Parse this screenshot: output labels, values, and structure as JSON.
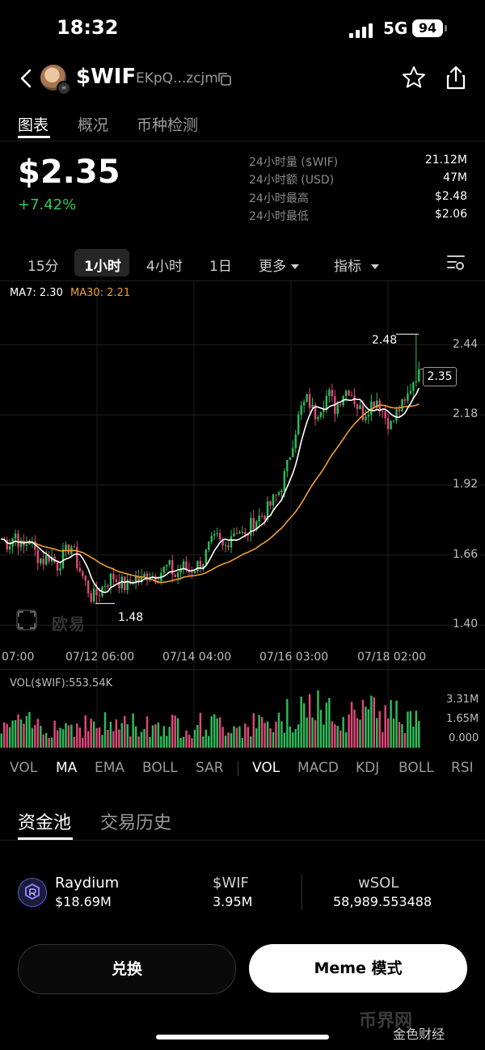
{
  "status": {
    "time": "18:32",
    "network": "5G",
    "battery": "94"
  },
  "header": {
    "ticker": "$WIF",
    "address": "EKpQ...zcjm"
  },
  "tabs": [
    "图表",
    "概况",
    "币种检测"
  ],
  "price": {
    "value": "$2.35",
    "change": "+7.42%",
    "stats": [
      {
        "label": "24小时量 ($WIF)",
        "value": "21.12M"
      },
      {
        "label": "24小时额 (USD)",
        "value": "47M"
      },
      {
        "label": "24小时最高",
        "value": "$2.48"
      },
      {
        "label": "24小时最低",
        "value": "$2.06"
      }
    ]
  },
  "intervals": {
    "items": [
      "15分",
      "1小时",
      "4小时",
      "1日"
    ],
    "active": "1小时",
    "more": "更多",
    "indicators": "指标"
  },
  "chart_data": {
    "type": "candlestick",
    "ma_legend": {
      "ma7": "MA7: 2.30",
      "ma30": "MA30: 2.21"
    },
    "colors": {
      "up": "#2ebd5b",
      "down": "#e0497a",
      "ma7": "#ffffff",
      "ma30": "#f0a030"
    },
    "y_ticks": [
      "2.44",
      "2.18",
      "1.92",
      "1.66",
      "1.40"
    ],
    "y_tick_values": [
      2.44,
      2.18,
      1.92,
      1.66,
      1.4
    ],
    "ylim": [
      1.35,
      2.58
    ],
    "x_ticks": [
      "07:00",
      "07/12 06:00",
      "07/14 04:00",
      "07/16 03:00",
      "07/18 02:00"
    ],
    "last_price": "2.35",
    "high_label": "2.48",
    "low_label": "1.48",
    "close_path": [
      1.72,
      1.7,
      1.74,
      1.68,
      1.72,
      1.66,
      1.64,
      1.66,
      1.62,
      1.66,
      1.7,
      1.62,
      1.56,
      1.5,
      1.52,
      1.56,
      1.58,
      1.56,
      1.54,
      1.58,
      1.56,
      1.6,
      1.58,
      1.6,
      1.62,
      1.58,
      1.62,
      1.6,
      1.62,
      1.64,
      1.7,
      1.72,
      1.68,
      1.74,
      1.76,
      1.72,
      1.78,
      1.8,
      1.82,
      1.86,
      1.9,
      1.98,
      2.1,
      2.2,
      2.24,
      2.18,
      2.22,
      2.26,
      2.2,
      2.26,
      2.28,
      2.22,
      2.18,
      2.22,
      2.24,
      2.18,
      2.14,
      2.2,
      2.22,
      2.3,
      2.35
    ],
    "ma7": "MA7 smoothing of close",
    "ma30": "MA30 smoothing of close",
    "volume": {
      "legend": "VOL($WIF):553.54K",
      "ticks": [
        "3.31M",
        "1.65M",
        "0.000"
      ]
    }
  },
  "indicators": [
    "VOL",
    "MA",
    "EMA",
    "BOLL",
    "SAR",
    "VOL",
    "MACD",
    "KDJ",
    "BOLL",
    "RSI"
  ],
  "pool_tabs": [
    "资金池",
    "交易历史"
  ],
  "pool": {
    "name": "Raydium",
    "liquidity": "$18.69M",
    "col1_head": "$WIF",
    "col1_val": "3.95M",
    "col2_head": "wSOL",
    "col2_val": "58,989.553488"
  },
  "buttons": {
    "swap": "兑换",
    "meme": "Meme 模式"
  },
  "watermarks": {
    "w1": "币界网",
    "w2": "金色财经",
    "chart": "欧易"
  }
}
